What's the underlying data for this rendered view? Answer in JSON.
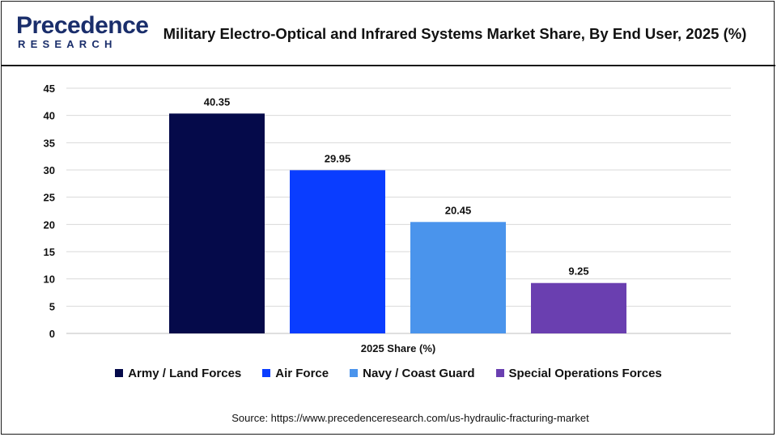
{
  "logo": {
    "word": "Precedence",
    "sub": "RESEARCH"
  },
  "header": {
    "title": "Military Electro-Optical and Infrared Systems Market Share, By End User, 2025 (%)"
  },
  "colors": {
    "brand": "#1a2e6b",
    "grid": "#d9d9d9",
    "axis": "#bfbfbf"
  },
  "chart_data": {
    "type": "bar",
    "title": "Military Electro-Optical and Infrared Systems Market Share, By End User, 2025 (%)",
    "xlabel": "2025 Share (%)",
    "ylabel": "",
    "ylim": [
      0,
      45
    ],
    "yticks": [
      0,
      5,
      10,
      15,
      20,
      25,
      30,
      35,
      40,
      45
    ],
    "grid": true,
    "legend_position": "bottom",
    "categories": [
      "2025 Share (%)"
    ],
    "series": [
      {
        "name": "Army / Land Forces",
        "values": [
          40.35
        ],
        "label": "40.35",
        "color": "#050a4a"
      },
      {
        "name": "Air Force",
        "values": [
          29.95
        ],
        "label": "29.95",
        "color": "#0a3dff"
      },
      {
        "name": "Navy / Coast Guard",
        "values": [
          20.45
        ],
        "label": "20.45",
        "color": "#4a94ec"
      },
      {
        "name": "Special Operations Forces",
        "values": [
          9.25
        ],
        "label": "9.25",
        "color": "#6a3fb0"
      }
    ]
  },
  "source": "Source: https://www.precedenceresearch.com/us-hydraulic-fracturing-market"
}
